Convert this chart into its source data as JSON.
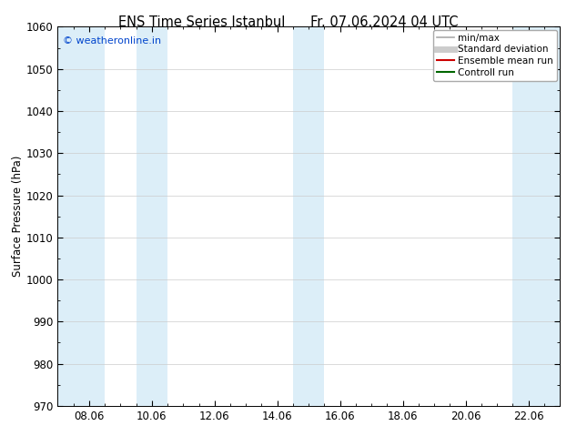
{
  "title_left": "ENS Time Series Istanbul",
  "title_right": "Fr. 07.06.2024 04 UTC",
  "ylabel": "Surface Pressure (hPa)",
  "ylim": [
    970,
    1060
  ],
  "yticks": [
    970,
    980,
    990,
    1000,
    1010,
    1020,
    1030,
    1040,
    1050,
    1060
  ],
  "xtick_labels": [
    "08.06",
    "10.06",
    "12.06",
    "14.06",
    "16.06",
    "18.06",
    "20.06",
    "22.06"
  ],
  "xtick_positions": [
    2,
    6,
    10,
    14,
    18,
    22,
    26,
    30
  ],
  "xlim": [
    0,
    32
  ],
  "shaded_bands": [
    {
      "x_start": 0,
      "x_end": 3
    },
    {
      "x_start": 5,
      "x_end": 7
    },
    {
      "x_start": 15,
      "x_end": 17
    },
    {
      "x_start": 29,
      "x_end": 32
    }
  ],
  "shaded_color": "#dceef8",
  "watermark_text": "© weatheronline.in",
  "watermark_color": "#0044cc",
  "legend_items": [
    {
      "label": "min/max",
      "color": "#aaaaaa",
      "lw": 1.2,
      "style": "-"
    },
    {
      "label": "Standard deviation",
      "color": "#cccccc",
      "lw": 5,
      "style": "-"
    },
    {
      "label": "Ensemble mean run",
      "color": "#cc0000",
      "lw": 1.5,
      "style": "-"
    },
    {
      "label": "Controll run",
      "color": "#006600",
      "lw": 1.5,
      "style": "-"
    }
  ],
  "grid_color": "#cccccc",
  "tick_color": "#000000",
  "axis_label_fontsize": 8.5,
  "title_fontsize": 10.5,
  "watermark_fontsize": 8,
  "legend_fontsize": 7.5
}
